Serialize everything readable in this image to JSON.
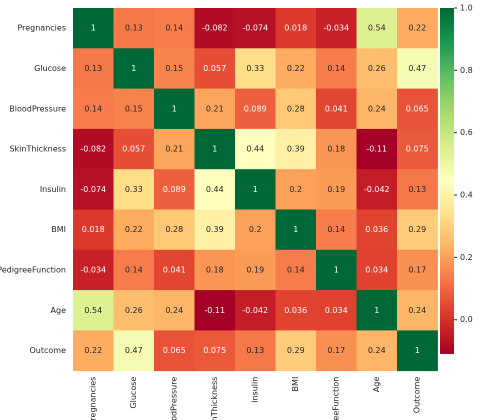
{
  "chart_data": {
    "type": "heatmap",
    "title": "",
    "colormap": "RdYlGn",
    "row_labels": [
      "Pregnancies",
      "Glucose",
      "BloodPressure",
      "SkinThickness",
      "Insulin",
      "BMI",
      "esPedigreeFunction",
      "Age",
      "Outcome"
    ],
    "col_labels": [
      "Pregnancies",
      "Glucose",
      "BloodPressure",
      "SkinThickness",
      "Insulin",
      "BMI",
      "igreeFunction",
      "Age",
      "Outcome"
    ],
    "values": [
      [
        1,
        0.13,
        0.14,
        -0.082,
        -0.074,
        0.018,
        -0.034,
        0.54,
        0.22
      ],
      [
        0.13,
        1,
        0.15,
        0.057,
        0.33,
        0.22,
        0.14,
        0.26,
        0.47
      ],
      [
        0.14,
        0.15,
        1,
        0.21,
        0.089,
        0.28,
        0.041,
        0.24,
        0.065
      ],
      [
        -0.082,
        0.057,
        0.21,
        1,
        0.44,
        0.39,
        0.18,
        -0.11,
        0.075
      ],
      [
        -0.074,
        0.33,
        0.089,
        0.44,
        1,
        0.2,
        0.19,
        -0.042,
        0.13
      ],
      [
        0.018,
        0.22,
        0.28,
        0.39,
        0.2,
        1,
        0.14,
        0.036,
        0.29
      ],
      [
        -0.034,
        0.14,
        0.041,
        0.18,
        0.19,
        0.14,
        1,
        0.034,
        0.17
      ],
      [
        0.54,
        0.26,
        0.24,
        -0.11,
        -0.042,
        0.036,
        0.034,
        1,
        0.24
      ],
      [
        0.22,
        0.47,
        0.065,
        0.075,
        0.13,
        0.29,
        0.17,
        0.24,
        1
      ]
    ],
    "labels": [
      [
        "1",
        "0.13",
        "0.14",
        "-0.082",
        "-0.074",
        "0.018",
        "-0.034",
        "0.54",
        "0.22"
      ],
      [
        "0.13",
        "1",
        "0.15",
        "0.057",
        "0.33",
        "0.22",
        "0.14",
        "0.26",
        "0.47"
      ],
      [
        "0.14",
        "0.15",
        "1",
        "0.21",
        "0.089",
        "0.28",
        "0.041",
        "0.24",
        "0.065"
      ],
      [
        "-0.082",
        "0.057",
        "0.21",
        "1",
        "0.44",
        "0.39",
        "0.18",
        "-0.11",
        "0.075"
      ],
      [
        "-0.074",
        "0.33",
        "0.089",
        "0.44",
        "1",
        "0.2",
        "0.19",
        "-0.042",
        "0.13"
      ],
      [
        "0.018",
        "0.22",
        "0.28",
        "0.39",
        "0.2",
        "1",
        "0.14",
        "0.036",
        "0.29"
      ],
      [
        "-0.034",
        "0.14",
        "0.041",
        "0.18",
        "0.19",
        "0.14",
        "1",
        "0.034",
        "0.17"
      ],
      [
        "0.54",
        "0.26",
        "0.24",
        "-0.11",
        "-0.042",
        "0.036",
        "0.034",
        "1",
        "0.24"
      ],
      [
        "0.22",
        "0.47",
        "0.065",
        "0.075",
        "0.13",
        "0.29",
        "0.17",
        "0.24",
        "1"
      ]
    ],
    "vmin": -0.11,
    "vmax": 1,
    "colorbar": {
      "ticks": [
        0.0,
        0.2,
        0.4,
        0.6,
        0.8,
        1.0
      ],
      "tick_labels": [
        "0.0",
        "0.2",
        "0.4",
        "0.6",
        "0.8",
        "1.0"
      ]
    }
  }
}
